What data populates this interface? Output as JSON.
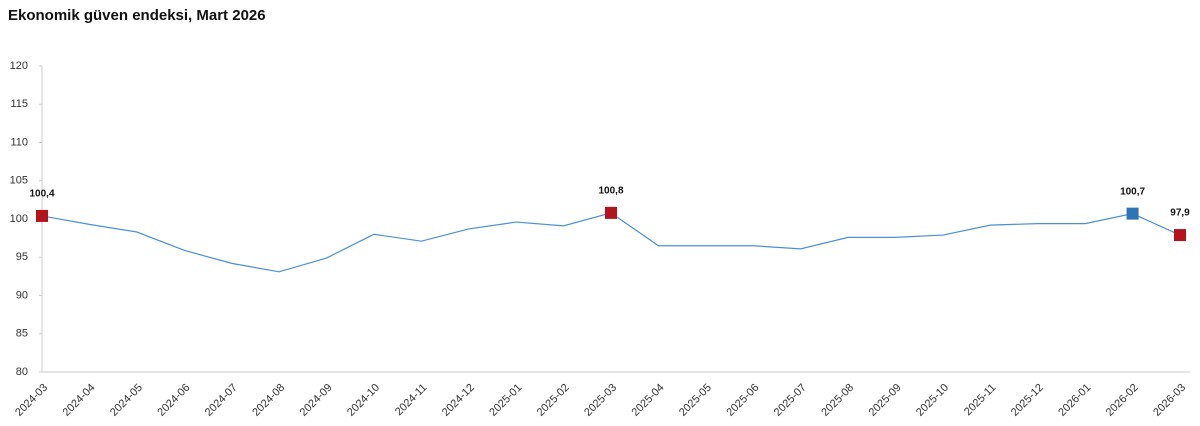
{
  "chart_data": {
    "type": "line",
    "title": "Ekonomik güven endeksi, Mart 2026",
    "categories": [
      "2024-03",
      "2024-04",
      "2024-05",
      "2024-06",
      "2024-07",
      "2024-08",
      "2024-09",
      "2024-10",
      "2024-11",
      "2024-12",
      "2025-01",
      "2025-02",
      "2025-03",
      "2025-04",
      "2025-05",
      "2025-06",
      "2025-07",
      "2025-08",
      "2025-09",
      "2025-10",
      "2025-11",
      "2025-12",
      "2026-01",
      "2026-02",
      "2026-03"
    ],
    "series": [
      {
        "color": "#4a90d9",
        "values": [
          100.4,
          99.3,
          98.3,
          95.9,
          94.2,
          93.1,
          94.9,
          98.0,
          97.1,
          98.7,
          99.6,
          99.1,
          100.8,
          96.5,
          96.5,
          96.5,
          96.1,
          97.6,
          97.6,
          97.9,
          99.2,
          99.4,
          99.4,
          100.7,
          97.9
        ],
        "value_labels": [
          "100,4",
          null,
          null,
          null,
          null,
          null,
          null,
          null,
          null,
          null,
          null,
          null,
          "100,8",
          null,
          null,
          null,
          null,
          null,
          null,
          null,
          null,
          null,
          null,
          "100,7",
          "97,9"
        ],
        "marker_colors": [
          "#b5121b",
          null,
          null,
          null,
          null,
          null,
          null,
          null,
          null,
          null,
          null,
          null,
          "#b5121b",
          null,
          null,
          null,
          null,
          null,
          null,
          null,
          null,
          null,
          null,
          "#2e75b6",
          "#b5121b"
        ]
      }
    ],
    "ylim": [
      80,
      120
    ],
    "yticks": [
      80,
      85,
      90,
      95,
      100,
      105,
      110,
      115,
      120
    ],
    "grid": false
  }
}
